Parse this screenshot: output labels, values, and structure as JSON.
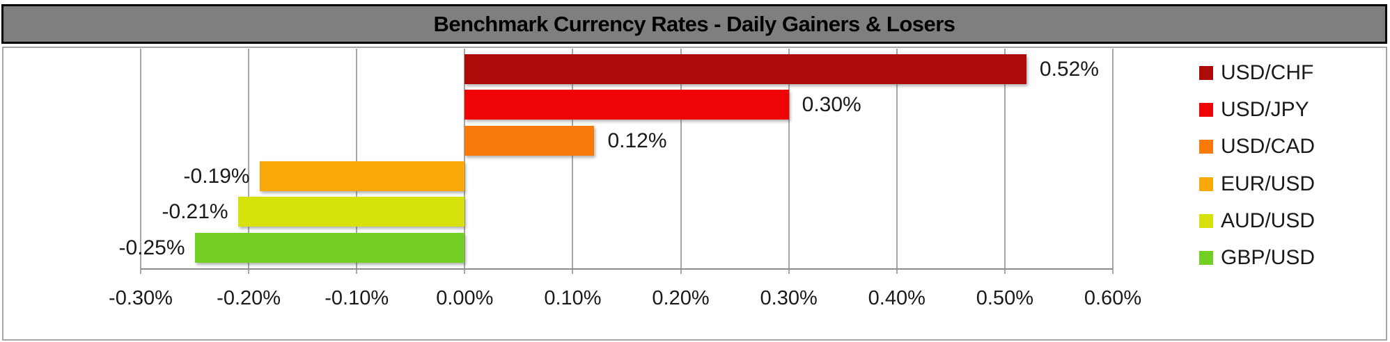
{
  "title": "Benchmark Currency Rates - Daily Gainers & Losers",
  "chart_data": {
    "type": "bar",
    "orientation": "horizontal",
    "title": "Benchmark Currency Rates - Daily Gainers & Losers",
    "categories": [
      "USD/CHF",
      "USD/JPY",
      "USD/CAD",
      "EUR/USD",
      "AUD/USD",
      "GBP/USD"
    ],
    "values": [
      0.52,
      0.3,
      0.12,
      -0.19,
      -0.21,
      -0.25
    ],
    "data_labels": [
      "0.52%",
      "0.30%",
      "0.12%",
      "-0.19%",
      "-0.21%",
      "-0.25%"
    ],
    "series_colors": [
      "#AD0A0A",
      "#EE0404",
      "#F87A0A",
      "#FAA808",
      "#D7E20D",
      "#74CF25"
    ],
    "xlim": [
      -0.3,
      0.6
    ],
    "x_ticks": [
      -0.3,
      -0.2,
      -0.1,
      0,
      0.1,
      0.2,
      0.3,
      0.4,
      0.5,
      0.6
    ],
    "x_tick_labels": [
      "-0.30%",
      "-0.20%",
      "-0.10%",
      "0.00%",
      "0.10%",
      "0.20%",
      "0.30%",
      "0.40%",
      "0.50%",
      "0.60%"
    ],
    "grid": "vertical",
    "legend_position": "right",
    "legend": [
      {
        "label": "USD/CHF",
        "color": "#AD0A0A"
      },
      {
        "label": "USD/JPY",
        "color": "#EE0404"
      },
      {
        "label": "USD/CAD",
        "color": "#F87A0A"
      },
      {
        "label": "EUR/USD",
        "color": "#FAA808"
      },
      {
        "label": "AUD/USD",
        "color": "#D7E20D"
      },
      {
        "label": "GBP/USD",
        "color": "#74CF25"
      }
    ]
  },
  "colors": {
    "title_bar_bg": "#7F7F7F",
    "title_bar_border": "#000000",
    "chart_border": "#A6A6A6",
    "gridline": "#A6A6A6",
    "axis_line": "#8C8C8C",
    "label_text": "#1A1A1A",
    "background": "#FFFFFF"
  }
}
